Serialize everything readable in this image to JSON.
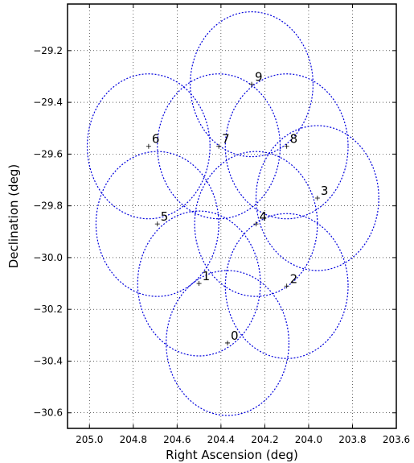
{
  "chart_data": {
    "type": "scatter",
    "title": "",
    "xlabel": "Right Ascension (deg)",
    "ylabel": "Declination (deg)",
    "xlim": [
      205.1,
      203.6
    ],
    "ylim": [
      -30.66,
      -29.02
    ],
    "x_inverted": true,
    "grid": true,
    "circle_radius_deg": 0.28,
    "circle_color": "#0000dd",
    "x_ticks": [
      205.0,
      204.8,
      204.6,
      204.4,
      204.2,
      204.0,
      203.8,
      203.6
    ],
    "x_tick_labels": [
      "205.0",
      "204.8",
      "204.6",
      "204.4",
      "204.2",
      "204.0",
      "203.8",
      "203.6"
    ],
    "y_ticks": [
      -29.2,
      -29.4,
      -29.6,
      -29.8,
      -30.0,
      -30.2,
      -30.4,
      -30.6
    ],
    "y_tick_labels": [
      "−29.2",
      "−29.4",
      "−29.6",
      "−29.8",
      "−30.0",
      "−30.2",
      "−30.4",
      "−30.6"
    ],
    "points": [
      {
        "label": "0",
        "ra": 204.37,
        "dec": -30.33
      },
      {
        "label": "1",
        "ra": 204.5,
        "dec": -30.1
      },
      {
        "label": "2",
        "ra": 204.1,
        "dec": -30.11
      },
      {
        "label": "3",
        "ra": 203.96,
        "dec": -29.77
      },
      {
        "label": "4",
        "ra": 204.24,
        "dec": -29.87
      },
      {
        "label": "5",
        "ra": 204.69,
        "dec": -29.87
      },
      {
        "label": "6",
        "ra": 204.73,
        "dec": -29.57
      },
      {
        "label": "7",
        "ra": 204.41,
        "dec": -29.57
      },
      {
        "label": "8",
        "ra": 204.1,
        "dec": -29.57
      },
      {
        "label": "9",
        "ra": 204.26,
        "dec": -29.33
      }
    ]
  }
}
